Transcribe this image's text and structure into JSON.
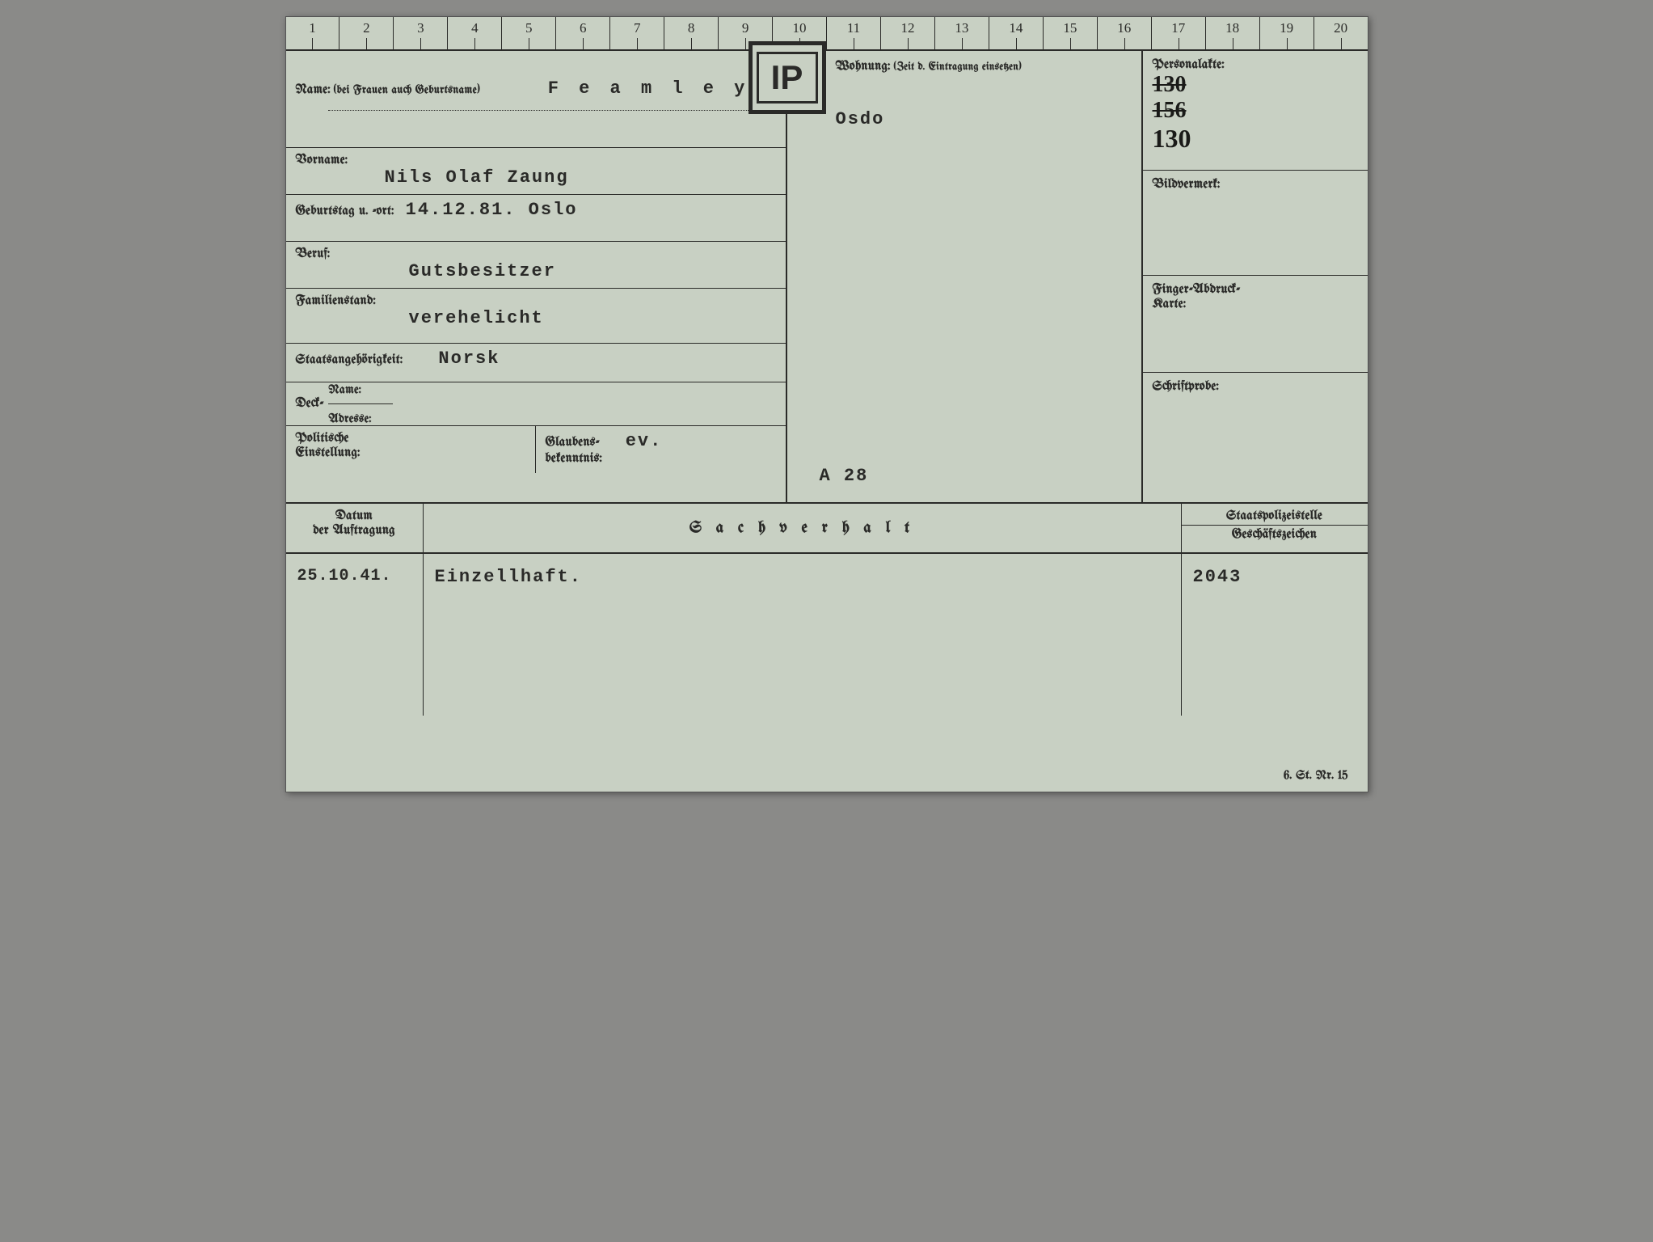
{
  "ruler": {
    "count": 20
  },
  "stamp": "IP",
  "labels": {
    "name": "Name:",
    "name_note": "(bei Frauen auch Geburtsname)",
    "vorname": "Vorname:",
    "geburt": "Geburtstag u. -ort:",
    "beruf": "Beruf:",
    "familien": "Familienstand:",
    "staats": "Staatsangehörigkeit:",
    "deck": "Deck-",
    "deck_name": "Name:",
    "deck_adresse": "Adresse:",
    "politische": "Politische",
    "einstellung": "Einstellung:",
    "glaubens": "Glaubens-",
    "bekenntnis": "bekenntnis:",
    "wohnung": "Wohnung:",
    "wohnung_note": "(Zeit d. Eintragung einsetzen)",
    "personalakte": "Personalakte:",
    "bildvermerk": "Bildvermerk:",
    "finger": "Finger-Abdruck-",
    "karte": "Karte:",
    "schriftprobe": "Schriftprobe:",
    "datum": "Datum",
    "auftragung": "der Auftragung",
    "sachverhalt": "S a c h v e r h a l t",
    "stelle": "Staatspolizeistelle",
    "zeichen": "Geschäftszeichen"
  },
  "fields": {
    "surname": "F e a m l e y",
    "vorname": "Nils Olaf Zaung",
    "geburt": "14.12.81.  Oslo",
    "beruf": "Gutsbesitzer",
    "familien": "verehelicht",
    "staats": "Norsk",
    "glaubens": "ev.",
    "wohnung": "Osdo",
    "akten": "A 28",
    "pers1": "130",
    "pers2": "156",
    "pers3": "130",
    "log_date": "25.10.41.",
    "log_text": "Einzellhaft.",
    "log_ref": "2043"
  },
  "footer": "6. St. Nr. 15",
  "colors": {
    "paper": "#c8d0c3",
    "ink": "#2a2a28",
    "frame": "#8a8a88"
  }
}
